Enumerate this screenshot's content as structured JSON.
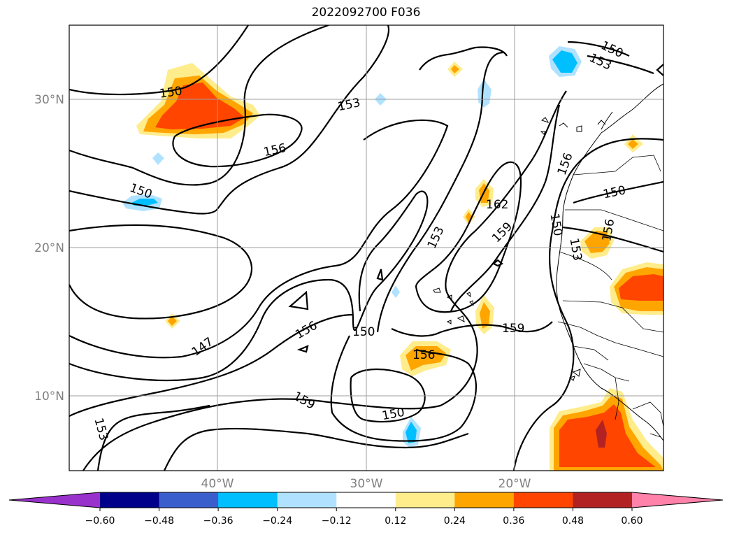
{
  "title": "2022092700 F036",
  "map": {
    "lat_labels": [
      "30°N",
      "20°N",
      "10°N"
    ],
    "lon_labels": [
      "40°W",
      "30°W",
      "20°W"
    ]
  },
  "contour_labels": [
    "150",
    "153",
    "156",
    "150",
    "147",
    "156",
    "150",
    "153",
    "150",
    "162",
    "159",
    "159",
    "150",
    "156",
    "159",
    "153",
    "156",
    "153",
    "150",
    "156",
    "153",
    "150"
  ],
  "colorbar": {
    "ticks": [
      "−0.60",
      "−0.48",
      "−0.36",
      "−0.24",
      "−0.12",
      "0.12",
      "0.24",
      "0.36",
      "0.48",
      "0.60"
    ],
    "colors": [
      "#9932cc",
      "#00008b",
      "#3a5fcd",
      "#00bfff",
      "#b0e2ff",
      "#ffffff",
      "#ffec8b",
      "#ffa500",
      "#ff4500",
      "#b22222",
      "#ff82ab"
    ]
  },
  "shading_colors": {
    "light_yellow": "#ffec8b",
    "orange": "#ffa500",
    "orange_red": "#ff4500",
    "dark_red": "#b22222",
    "light_blue": "#b0e2ff",
    "deep_sky_blue": "#00bfff",
    "royal_blue": "#3a5fcd"
  }
}
